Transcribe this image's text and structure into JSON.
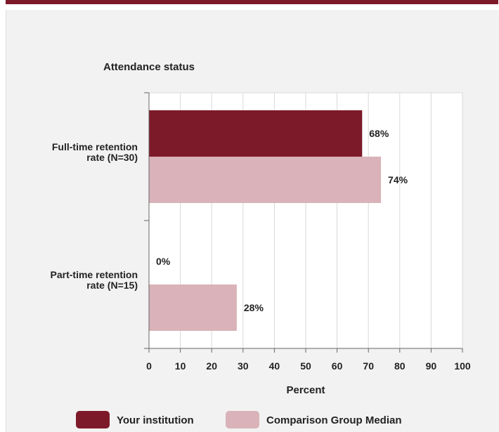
{
  "chart_data": {
    "type": "bar",
    "orientation": "horizontal",
    "title": "Attendance status",
    "xlabel": "Percent",
    "ylabel": "",
    "xlim": [
      0,
      100
    ],
    "x_ticks": [
      "0",
      "10",
      "20",
      "30",
      "40",
      "50",
      "60",
      "70",
      "80",
      "90",
      "100"
    ],
    "categories": [
      [
        "Full-time retention",
        "rate (N=30)"
      ],
      [
        "Part-time retention",
        "rate (N=15)"
      ]
    ],
    "series": [
      {
        "name": "Your institution",
        "values": [
          68,
          0
        ],
        "labels": [
          "68%",
          "0%"
        ],
        "color": "#7d1a2a"
      },
      {
        "name": "Comparison Group Median",
        "values": [
          74,
          28
        ],
        "labels": [
          "74%",
          "28%"
        ],
        "color": "#d9b3b9"
      }
    ],
    "grid": true,
    "legend_position": "bottom"
  }
}
